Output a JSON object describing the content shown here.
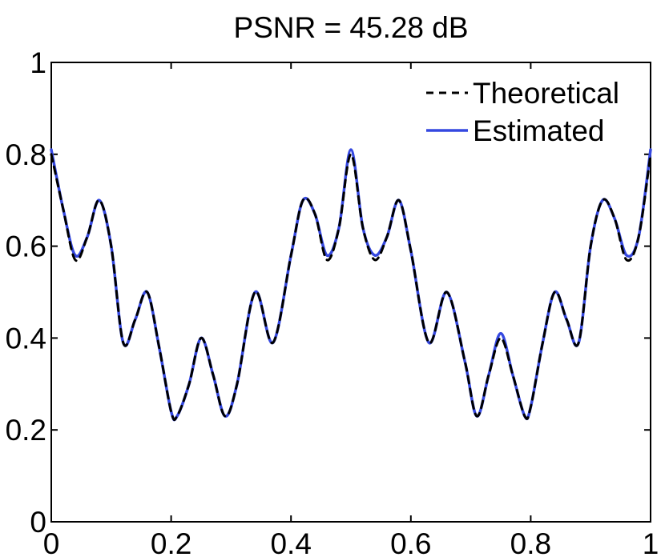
{
  "chart_data": {
    "type": "line",
    "title": "PSNR = 45.28 dB",
    "xlabel": "",
    "ylabel": "",
    "xlim": [
      0,
      1
    ],
    "ylim": [
      0,
      1
    ],
    "xticks": [
      "0",
      "0.2",
      "0.4",
      "0.6",
      "0.8",
      "1"
    ],
    "yticks": [
      "0",
      "0.2",
      "0.4",
      "0.6",
      "0.8",
      "1"
    ],
    "grid": false,
    "legend_position": "top-right",
    "x": [
      0,
      0.02,
      0.04,
      0.06,
      0.08,
      0.1,
      0.12,
      0.14,
      0.16,
      0.18,
      0.2,
      0.21,
      0.23,
      0.25,
      0.27,
      0.29,
      0.31,
      0.34,
      0.37,
      0.4,
      0.42,
      0.44,
      0.46,
      0.48,
      0.5,
      0.52,
      0.54,
      0.56,
      0.58,
      0.6,
      0.63,
      0.66,
      0.69,
      0.71,
      0.73,
      0.75,
      0.77,
      0.79,
      0.8,
      0.82,
      0.84,
      0.86,
      0.88,
      0.9,
      0.92,
      0.94,
      0.96,
      0.98,
      1.0
    ],
    "series": [
      {
        "name": "Theoretical",
        "color": "#000000",
        "style": "dashed",
        "values": [
          0.8,
          0.68,
          0.57,
          0.62,
          0.7,
          0.6,
          0.39,
          0.44,
          0.5,
          0.38,
          0.24,
          0.23,
          0.3,
          0.4,
          0.32,
          0.23,
          0.3,
          0.5,
          0.39,
          0.58,
          0.7,
          0.67,
          0.57,
          0.64,
          0.8,
          0.64,
          0.57,
          0.62,
          0.7,
          0.59,
          0.39,
          0.5,
          0.35,
          0.23,
          0.32,
          0.4,
          0.32,
          0.23,
          0.25,
          0.39,
          0.5,
          0.44,
          0.39,
          0.6,
          0.7,
          0.66,
          0.57,
          0.62,
          0.8
        ]
      },
      {
        "name": "Estimated",
        "color": "#3548e0",
        "style": "solid",
        "values": [
          0.81,
          0.68,
          0.58,
          0.62,
          0.7,
          0.6,
          0.39,
          0.44,
          0.5,
          0.38,
          0.24,
          0.23,
          0.3,
          0.4,
          0.32,
          0.23,
          0.3,
          0.5,
          0.39,
          0.58,
          0.7,
          0.67,
          0.58,
          0.64,
          0.81,
          0.64,
          0.58,
          0.62,
          0.7,
          0.59,
          0.39,
          0.5,
          0.35,
          0.23,
          0.32,
          0.41,
          0.32,
          0.23,
          0.25,
          0.39,
          0.5,
          0.44,
          0.39,
          0.6,
          0.7,
          0.66,
          0.58,
          0.62,
          0.81
        ]
      }
    ]
  }
}
